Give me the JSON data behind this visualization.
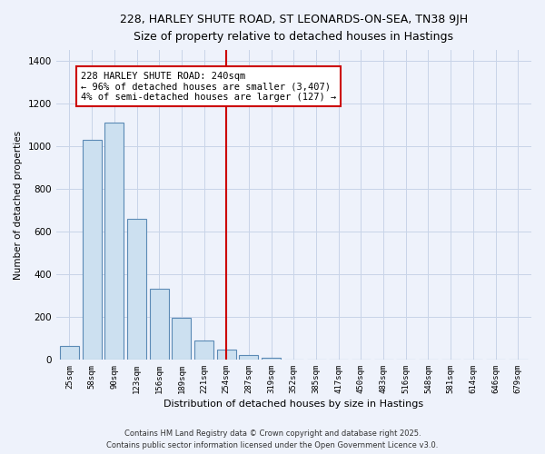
{
  "title": "228, HARLEY SHUTE ROAD, ST LEONARDS-ON-SEA, TN38 9JH",
  "subtitle": "Size of property relative to detached houses in Hastings",
  "xlabel": "Distribution of detached houses by size in Hastings",
  "ylabel": "Number of detached properties",
  "categories": [
    "25sqm",
    "58sqm",
    "90sqm",
    "123sqm",
    "156sqm",
    "189sqm",
    "221sqm",
    "254sqm",
    "287sqm",
    "319sqm",
    "352sqm",
    "385sqm",
    "417sqm",
    "450sqm",
    "483sqm",
    "516sqm",
    "548sqm",
    "581sqm",
    "614sqm",
    "646sqm",
    "679sqm"
  ],
  "values": [
    65,
    1030,
    1110,
    660,
    330,
    195,
    90,
    45,
    20,
    10,
    0,
    0,
    0,
    0,
    0,
    0,
    0,
    0,
    0,
    0,
    0
  ],
  "bar_color": "#cce0f0",
  "bar_edge_color": "#5b8ab5",
  "annotation_title": "228 HARLEY SHUTE ROAD: 240sqm",
  "annotation_line1": "← 96% of detached houses are smaller (3,407)",
  "annotation_line2": "4% of semi-detached houses are larger (127) →",
  "vline_color": "#cc0000",
  "annotation_box_color": "#ffffff",
  "annotation_box_edgecolor": "#cc0000",
  "ylim": [
    0,
    1450
  ],
  "yticks": [
    0,
    200,
    400,
    600,
    800,
    1000,
    1200,
    1400
  ],
  "bg_color": "#eef2fb",
  "grid_color": "#c8d4e8",
  "footer1": "Contains HM Land Registry data © Crown copyright and database right 2025.",
  "footer2": "Contains public sector information licensed under the Open Government Licence v3.0."
}
